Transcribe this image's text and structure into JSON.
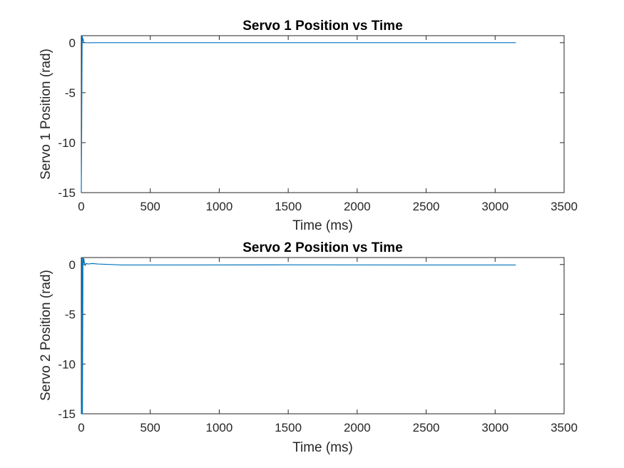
{
  "chart_data": [
    {
      "type": "line",
      "title": "Servo 1 Position vs Time",
      "xlabel": "Time (ms)",
      "ylabel": "Servo 1 Position (rad)",
      "xlim": [
        0,
        3500
      ],
      "ylim": [
        -15,
        0.7
      ],
      "xticks": [
        0,
        500,
        1000,
        1500,
        2000,
        2500,
        3000,
        3500
      ],
      "yticks": [
        0,
        -5,
        -10,
        -15
      ],
      "grid": false,
      "color": "#0072BD",
      "series": [
        {
          "x": [
            0,
            3,
            6,
            10,
            13,
            16,
            20,
            30,
            60,
            100,
            300,
            700,
            1500,
            2500,
            3150
          ],
          "y": [
            -15,
            -8,
            0.7,
            0.2,
            0.4,
            0.05,
            0.02,
            0,
            -0.01,
            0,
            0,
            0,
            0,
            0,
            0
          ]
        }
      ]
    },
    {
      "type": "line",
      "title": "Servo 2 Position vs Time",
      "xlabel": "Time (ms)",
      "ylabel": "Servo 2 Position (rad)",
      "xlim": [
        0,
        3500
      ],
      "ylim": [
        -15,
        0.7
      ],
      "xticks": [
        0,
        500,
        1000,
        1500,
        2000,
        2500,
        3000,
        3500
      ],
      "yticks": [
        0,
        -5,
        -10,
        -15
      ],
      "grid": false,
      "color": "#0072BD",
      "series": [
        {
          "x": [
            0,
            2,
            5,
            8,
            12,
            15,
            18,
            22,
            28,
            35,
            50,
            80,
            120,
            300,
            700,
            1500,
            2500,
            3150
          ],
          "y": [
            -14,
            -15,
            0.7,
            -15,
            0.6,
            0.1,
            0.6,
            0.2,
            -0.1,
            0.1,
            0.05,
            0.1,
            0.05,
            -0.05,
            -0.05,
            -0.03,
            -0.05,
            -0.05
          ]
        }
      ]
    }
  ]
}
